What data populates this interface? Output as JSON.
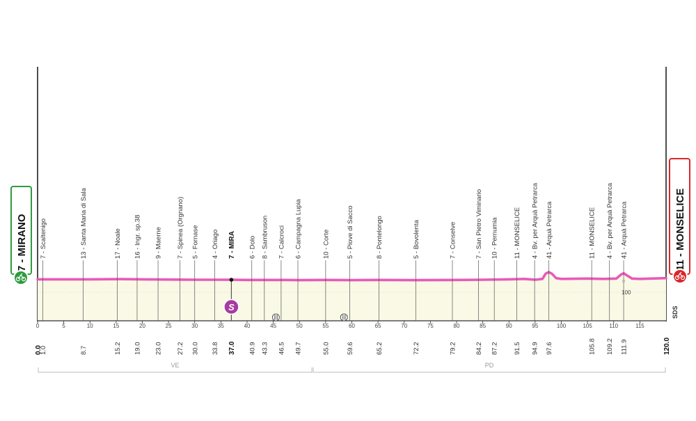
{
  "chart_data": {
    "type": "area",
    "xlim": [
      0,
      120
    ],
    "xticks": [
      0,
      5,
      10,
      15,
      20,
      25,
      30,
      35,
      40,
      45,
      50,
      55,
      60,
      65,
      70,
      75,
      80,
      85,
      90,
      95,
      100,
      105,
      110,
      115
    ],
    "start": {
      "label": "7 - MIRANO",
      "km": "0.0"
    },
    "finish": {
      "label": "11 - MONSELICE",
      "km": "120.0"
    },
    "profile": [
      [
        0,
        8
      ],
      [
        5,
        8
      ],
      [
        10,
        8
      ],
      [
        16,
        8.5
      ],
      [
        20,
        8
      ],
      [
        30,
        7
      ],
      [
        37,
        7
      ],
      [
        40,
        6.5
      ],
      [
        47,
        6.5
      ],
      [
        50,
        6
      ],
      [
        55,
        6.5
      ],
      [
        60,
        6
      ],
      [
        65,
        6.5
      ],
      [
        72,
        6
      ],
      [
        80,
        6.5
      ],
      [
        85,
        7
      ],
      [
        90,
        8
      ],
      [
        93,
        9
      ],
      [
        95,
        7
      ],
      [
        96.4,
        9
      ],
      [
        97,
        22
      ],
      [
        97.6,
        26
      ],
      [
        98.2,
        22
      ],
      [
        99,
        11
      ],
      [
        100,
        9
      ],
      [
        105,
        10
      ],
      [
        108,
        9
      ],
      [
        110.5,
        10
      ],
      [
        111.4,
        20
      ],
      [
        111.9,
        23
      ],
      [
        112.5,
        18
      ],
      [
        113.5,
        10
      ],
      [
        115,
        9
      ],
      [
        120,
        11
      ]
    ],
    "y_marker": {
      "label": "100",
      "km": 111.9
    },
    "waypoints": [
      {
        "label": "7 - Scaltenigo",
        "km": "1.0",
        "x": 1.0
      },
      {
        "label": "13 - Santa Maria di Sala",
        "km": "8.7",
        "x": 8.7
      },
      {
        "label": "17 - Noale",
        "km": "15.2",
        "x": 15.2
      },
      {
        "label": "16 - Ingr. sp.38",
        "km": "19.0",
        "x": 19.0
      },
      {
        "label": "9 - Maerne",
        "km": "23.0",
        "x": 23.0
      },
      {
        "label": "7 - Spinea (Orgnano)",
        "km": "27.2",
        "x": 27.2
      },
      {
        "label": "5 - Fornase",
        "km": "30.0",
        "x": 30.0
      },
      {
        "label": "4 - Oriago",
        "km": "33.8",
        "x": 33.8
      },
      {
        "label": "7 - MIRA",
        "km": "37.0",
        "x": 37.0,
        "bold": true
      },
      {
        "label": "6 - Dolo",
        "km": "40.9",
        "x": 40.9
      },
      {
        "label": "8 - Sambruson",
        "km": "43.3",
        "x": 43.3
      },
      {
        "label": "7 - Calcroci",
        "km": "46.5",
        "x": 46.5
      },
      {
        "label": "6 - Campagna Lupia",
        "km": "49.7",
        "x": 49.7
      },
      {
        "label": "10 - Corte",
        "km": "55.0",
        "x": 55.0
      },
      {
        "label": "5 - Piove di Sacco",
        "km": "59.6",
        "x": 59.6
      },
      {
        "label": "8 - Pontelongo",
        "km": "65.2",
        "x": 65.2
      },
      {
        "label": "5 - Bovolenta",
        "km": "72.2",
        "x": 72.2
      },
      {
        "label": "7 - Conselve",
        "km": "79.2",
        "x": 79.2
      },
      {
        "label": "7 - San Pietro Viminario",
        "km": "84.2",
        "x": 84.2
      },
      {
        "label": "10 - Pernumia",
        "km": "87.2",
        "x": 87.2
      },
      {
        "label": "11 - MONSELICE",
        "km": "91.5",
        "x": 91.5
      },
      {
        "label": "4 - Bv. per Arquà  Petrarca",
        "km": "94.9",
        "x": 94.9
      },
      {
        "label": "41 - Arquà Petrarca",
        "km": "97.6",
        "x": 97.6
      },
      {
        "label": "11 - MONSELICE",
        "km": "105.8",
        "x": 105.8
      },
      {
        "label": "4 - Bv. per Arquà  Petrarca",
        "km": "109.2",
        "x": 109.2
      },
      {
        "label": "41 - Arquà Petrarca",
        "km": "111.9",
        "x": 111.9
      }
    ],
    "regions": [
      {
        "label": "VE",
        "from": 0,
        "to": 52.5
      },
      {
        "label": "PD",
        "from": 52.5,
        "to": 120
      }
    ],
    "sprint": {
      "symbol": "S",
      "km": 37.0
    },
    "cobbles_km": [
      45.5,
      58.5
    ],
    "sds_label": "SDS",
    "colors": {
      "profile": "#e85ab8",
      "fill": "#f9f9e6",
      "start": "#2e9b3e",
      "finish": "#d9262b",
      "sprint": "#a63ba0"
    }
  }
}
